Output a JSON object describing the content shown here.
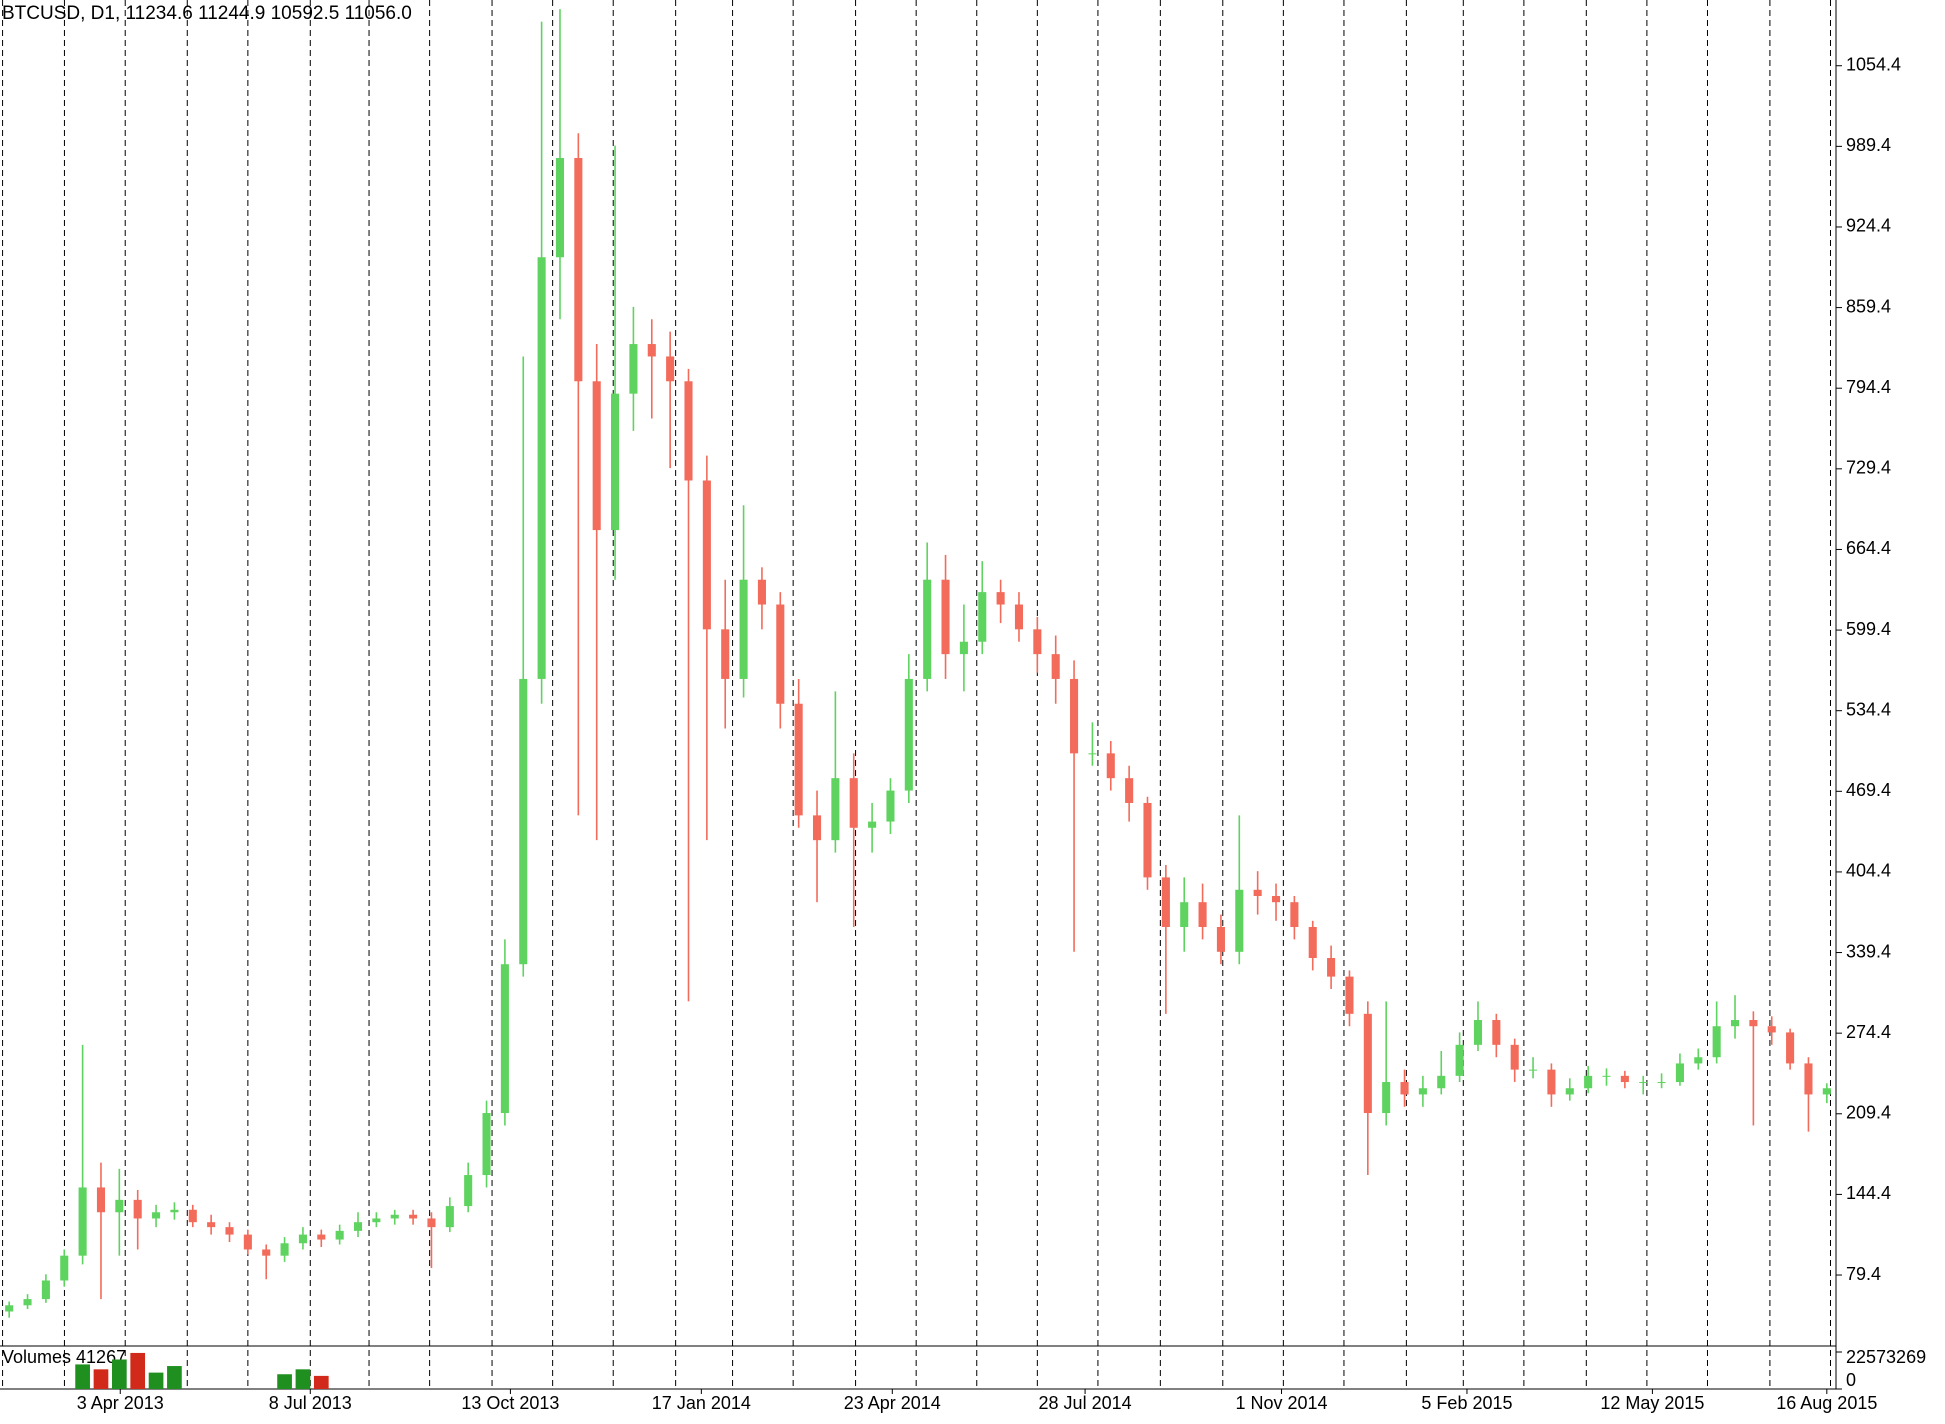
{
  "chart_data": {
    "type": "candlestick",
    "title": "BTCUSD, D1, 11234.6 11244.9 10592.5 11056.0",
    "up_color": "#5fd35f",
    "down_color": "#f26b5b",
    "grid": true,
    "xlim": [
      0,
      100
    ],
    "xticks": [
      {
        "value": 6.55,
        "label": "3 Apr 2013"
      },
      {
        "value": 16.9,
        "label": "8 Jul 2013"
      },
      {
        "value": 27.8,
        "label": "13 Oct 2013"
      },
      {
        "value": 38.2,
        "label": "17 Jan 2014"
      },
      {
        "value": 48.6,
        "label": "23 Apr 2014"
      },
      {
        "value": 59.1,
        "label": "28 Jul 2014"
      },
      {
        "value": 69.8,
        "label": "1 Nov 2014"
      },
      {
        "value": 79.9,
        "label": "5 Feb 2015"
      },
      {
        "value": 90,
        "label": "12 May 2015"
      },
      {
        "value": 99.5,
        "label": "16 Aug 2015"
      }
    ],
    "xgrid": [
      0.14,
      3.51,
      6.82,
      10.2,
      13.5,
      16.9,
      20.1,
      23.4,
      26.8,
      30.1,
      33.4,
      36.8,
      39.9,
      43.2,
      46.6,
      49.9,
      53.2,
      56.5,
      59.8,
      63.2,
      66.6,
      69.9,
      73.2,
      76.6,
      79.7,
      83,
      86.4,
      89.7,
      93,
      96.4,
      99.7
    ],
    "ylim": [
      25.4,
      1107.4
    ],
    "yticks": [
      79.4,
      144.4,
      209.4,
      274.4,
      339.4,
      404.4,
      469.4,
      534.4,
      599.4,
      664.4,
      729.4,
      794.4,
      859.4,
      924.4,
      989.4,
      1054.4
    ],
    "open": [
      50,
      55,
      60,
      75,
      95,
      150,
      130,
      140,
      125,
      130,
      132,
      122,
      118,
      112,
      100,
      95,
      105,
      112,
      108,
      115,
      122,
      125,
      128,
      125,
      118,
      135,
      160,
      210,
      330,
      560,
      900,
      980,
      800,
      680,
      790,
      830,
      820,
      800,
      720,
      600,
      560,
      640,
      620,
      540,
      450,
      430,
      480,
      440,
      445,
      470,
      560,
      640,
      580,
      590,
      630,
      620,
      600,
      580,
      560,
      500,
      500,
      480,
      460,
      400,
      360,
      380,
      360,
      340,
      390,
      385,
      380,
      360,
      335,
      320,
      290,
      210,
      235,
      225,
      230,
      240,
      265,
      285,
      265,
      245,
      245,
      225,
      230,
      240,
      240,
      235,
      235,
      235,
      250,
      255,
      280,
      285,
      280,
      275,
      250,
      225
    ],
    "high": [
      58,
      64,
      80,
      100,
      265,
      170,
      165,
      148,
      136,
      138,
      136,
      128,
      122,
      116,
      104,
      110,
      118,
      116,
      120,
      130,
      130,
      132,
      132,
      130,
      142,
      170,
      220,
      350,
      820,
      1090,
      1100,
      1000,
      830,
      990,
      860,
      850,
      840,
      810,
      740,
      640,
      700,
      650,
      630,
      560,
      470,
      550,
      500,
      460,
      480,
      580,
      670,
      660,
      620,
      655,
      640,
      630,
      610,
      595,
      575,
      525,
      510,
      490,
      465,
      410,
      400,
      395,
      370,
      450,
      405,
      395,
      385,
      365,
      345,
      325,
      300,
      300,
      245,
      240,
      260,
      275,
      300,
      290,
      270,
      255,
      250,
      238,
      248,
      246,
      244,
      240,
      242,
      258,
      262,
      300,
      305,
      292,
      288,
      278,
      255,
      234
    ],
    "low": [
      45,
      52,
      57,
      70,
      88,
      60,
      95,
      100,
      118,
      124,
      118,
      112,
      106,
      96,
      76,
      90,
      100,
      102,
      104,
      110,
      118,
      120,
      120,
      85,
      114,
      130,
      150,
      200,
      320,
      540,
      850,
      450,
      430,
      640,
      760,
      770,
      730,
      300,
      430,
      520,
      545,
      600,
      520,
      440,
      380,
      420,
      360,
      420,
      435,
      460,
      550,
      560,
      550,
      580,
      605,
      590,
      565,
      540,
      340,
      490,
      470,
      445,
      390,
      290,
      340,
      350,
      330,
      330,
      370,
      365,
      350,
      325,
      310,
      280,
      160,
      200,
      215,
      215,
      225,
      235,
      260,
      255,
      235,
      238,
      215,
      220,
      226,
      232,
      230,
      225,
      230,
      232,
      245,
      250,
      270,
      200,
      265,
      245,
      195,
      218
    ],
    "close": [
      55,
      60,
      75,
      95,
      150,
      130,
      140,
      125,
      130,
      132,
      122,
      118,
      112,
      100,
      95,
      105,
      112,
      108,
      115,
      122,
      125,
      128,
      125,
      118,
      135,
      160,
      210,
      330,
      560,
      900,
      980,
      800,
      680,
      790,
      830,
      820,
      800,
      720,
      600,
      560,
      640,
      620,
      540,
      450,
      430,
      480,
      440,
      445,
      470,
      560,
      640,
      580,
      590,
      630,
      620,
      600,
      580,
      560,
      500,
      500,
      480,
      460,
      400,
      360,
      380,
      360,
      340,
      390,
      385,
      380,
      360,
      335,
      320,
      290,
      210,
      235,
      225,
      230,
      240,
      265,
      285,
      265,
      245,
      245,
      225,
      230,
      240,
      240,
      235,
      235,
      235,
      250,
      255,
      280,
      285,
      280,
      275,
      250,
      225,
      230
    ],
    "volume": {
      "title": "Volumes 41267",
      "up_color": "#1f8f1f",
      "down_color": "#d22a1a",
      "ylim": [
        0,
        22573269
      ],
      "yticks": [
        0,
        22573269
      ],
      "x": [
        4,
        5,
        6,
        7,
        8,
        9,
        15,
        16,
        17
      ],
      "values": [
        15000000,
        12000000,
        18000000,
        22000000,
        10000000,
        14000000,
        9000000,
        12000000,
        8000000
      ]
    }
  }
}
